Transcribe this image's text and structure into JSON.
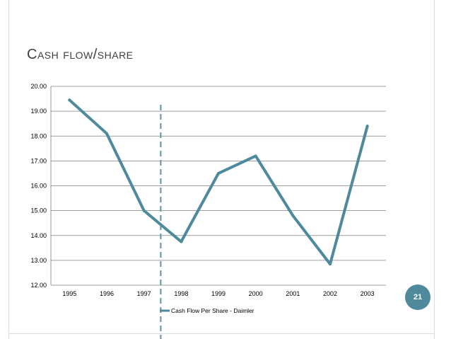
{
  "slide": {
    "title": "Cash flow/share",
    "page_number": "21"
  },
  "colors": {
    "line": "#4e8a9c",
    "grid": "#808080",
    "divider": "#6d9aab",
    "badge": "#4e8a9c"
  },
  "chart_data": {
    "type": "line",
    "title": "",
    "xlabel": "",
    "ylabel": "",
    "categories": [
      "1995",
      "1996",
      "1997",
      "1998",
      "1999",
      "2000",
      "2001",
      "2002",
      "2003"
    ],
    "series": [
      {
        "name": "Cash Flow Per Share - Daimler",
        "values": [
          19.45,
          18.1,
          15.0,
          13.75,
          16.5,
          17.2,
          14.8,
          12.85,
          18.4
        ]
      }
    ],
    "ylim": [
      12,
      20
    ],
    "yticks": [
      "12.00",
      "13.00",
      "14.00",
      "15.00",
      "16.00",
      "17.00",
      "18.00",
      "19.00",
      "20.00"
    ],
    "grid": true,
    "legend": "bottom",
    "annotation": {
      "type": "vertical-dashed-line",
      "x_between": [
        "1997",
        "1998"
      ],
      "x_fraction": 0.45
    }
  }
}
